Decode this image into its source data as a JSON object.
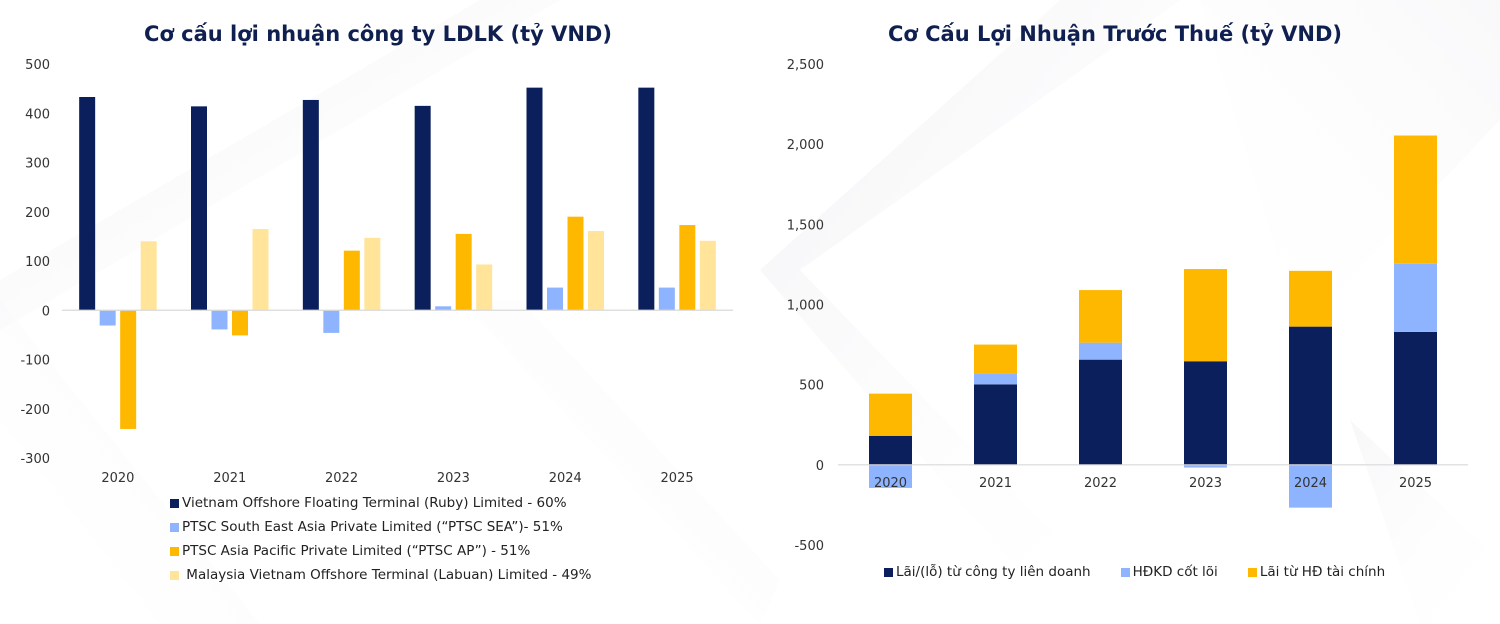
{
  "colors": {
    "navy": "#0a1f5c",
    "light_blue": "#8eb4ff",
    "gold": "#ffb800",
    "pale_yellow": "#ffe49a",
    "axis": "#d9d9d9"
  },
  "chart_data": [
    {
      "type": "bar",
      "title": "Cơ cấu lợi nhuận công ty LDLK (tỷ VND)",
      "xlabel": "",
      "ylabel": "",
      "categories": [
        "2020",
        "2021",
        "2022",
        "2023",
        "2024",
        "2025"
      ],
      "ylim": [
        -300,
        500
      ],
      "yticks": [
        500,
        400,
        300,
        200,
        100,
        0,
        -100,
        -200,
        -300
      ],
      "ytick_labels": [
        "500",
        "400",
        "300",
        "200",
        "100",
        "0",
        "-100",
        "-200",
        "-300"
      ],
      "grid": false,
      "legend_position": "bottom",
      "series": [
        {
          "name": "Vietnam Offshore Floating Terminal (Ruby) Limited - 60%",
          "color": "#0a1f5c",
          "values": [
            433,
            414,
            427,
            415,
            452,
            452
          ]
        },
        {
          "name": "PTSC South East Asia Private Limited (“PTSC SEA”)- 51%",
          "color": "#8eb4ff",
          "values": [
            -31,
            -39,
            -46,
            8,
            46,
            46
          ]
        },
        {
          "name": "PTSC Asia Pacific Private Limited (“PTSC AP”) - 51%",
          "color": "#ffb800",
          "values": [
            -241,
            -51,
            121,
            155,
            190,
            173
          ]
        },
        {
          "name": " Malaysia Vietnam Offshore Terminal (Labuan) Limited - 49%",
          "color": "#ffe49a",
          "values": [
            140,
            165,
            147,
            93,
            161,
            141
          ]
        }
      ]
    },
    {
      "type": "bar",
      "stacked": true,
      "title": "Cơ Cấu Lợi Nhuận Trước Thuế (tỷ VND)",
      "xlabel": "",
      "ylabel": "",
      "categories": [
        "2020",
        "2021",
        "2022",
        "2023",
        "2024",
        "2025"
      ],
      "ylim": [
        -500,
        2500
      ],
      "yticks": [
        2500,
        2000,
        1500,
        1000,
        500,
        0,
        -500
      ],
      "ytick_labels": [
        "2,500",
        "2,000",
        "1,500",
        "1,000",
        "500",
        "0",
        "-500"
      ],
      "grid": false,
      "legend_position": "bottom",
      "series": [
        {
          "name": "Lãi/(lỗ) từ công ty liên doanh",
          "color": "#0a1f5c",
          "values": [
            181,
            502,
            656,
            646,
            862,
            829
          ]
        },
        {
          "name": "HĐKD cốt lõi",
          "color": "#8eb4ff",
          "values": [
            -144,
            67,
            106,
            -17,
            -267,
            425
          ]
        },
        {
          "name": "Lãi từ HĐ tài chính",
          "color": "#ffb800",
          "values": [
            263,
            181,
            328,
            575,
            348,
            800
          ]
        }
      ]
    }
  ]
}
